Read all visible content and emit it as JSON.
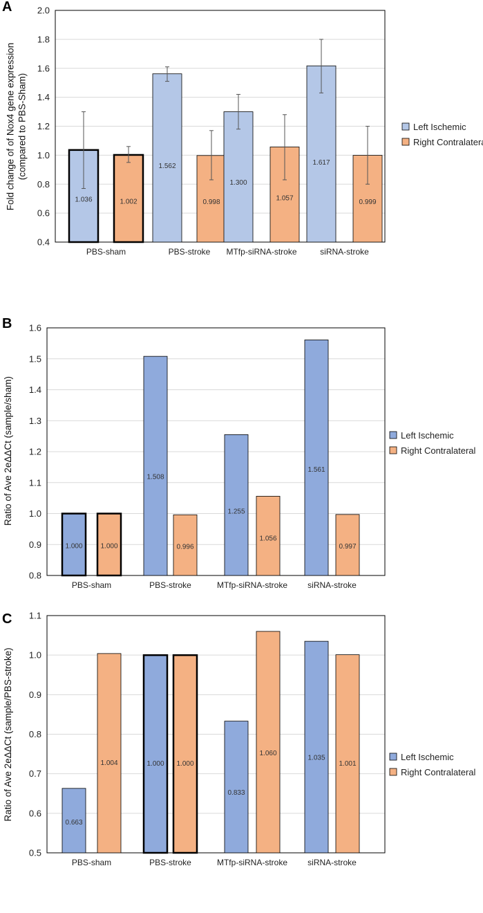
{
  "colors": {
    "left_light": "#b4c7e7",
    "right_light": "#f4b183",
    "left": "#8faadc",
    "right": "#f4b183",
    "grid": "#d9d9d9",
    "frame": "#000000"
  },
  "chart_data": [
    {
      "panel": "A",
      "type": "bar",
      "categories": [
        "PBS-sham",
        "PBS-stroke",
        "MTfp-siRNA-stroke",
        "siRNA-stroke"
      ],
      "series": [
        {
          "name": "Left Ischemic",
          "values": [
            1.036,
            1.562,
            1.3,
            1.617
          ],
          "labels": [
            "1.036",
            "1.562",
            "1.300",
            "1.617"
          ],
          "err_low": [
            0.77,
            1.51,
            1.18,
            1.43
          ],
          "err_high": [
            1.3,
            1.61,
            1.42,
            1.8
          ]
        },
        {
          "name": "Right Contralateral",
          "values": [
            1.002,
            0.998,
            1.057,
            0.999
          ],
          "labels": [
            "1.002",
            "0.998",
            "1.057",
            "0.999"
          ],
          "err_low": [
            0.95,
            0.83,
            0.83,
            0.8
          ],
          "err_high": [
            1.06,
            1.17,
            1.28,
            1.2
          ]
        }
      ],
      "highlight_category": "PBS-sham",
      "ylabel_lines": [
        "Fold change of of Nox4 gene expression",
        "(compared to PBS-Sham)"
      ],
      "ylim": [
        0.4,
        2.0
      ],
      "yticks": [
        "0.4",
        "0.6",
        "0.8",
        "1.0",
        "1.2",
        "1.4",
        "1.6",
        "1.8",
        "2.0"
      ],
      "grid": true,
      "legend_position": "right"
    },
    {
      "panel": "B",
      "type": "bar",
      "categories": [
        "PBS-sham",
        "PBS-stroke",
        "MTfp-siRNA-stroke",
        "siRNA-stroke"
      ],
      "series": [
        {
          "name": "Left Ischemic",
          "values": [
            1.0,
            1.508,
            1.255,
            1.561
          ],
          "labels": [
            "1.000",
            "1.508",
            "1.255",
            "1.561"
          ]
        },
        {
          "name": "Right Contralateral",
          "values": [
            1.0,
            0.996,
            1.056,
            0.997
          ],
          "labels": [
            "1.000",
            "0.996",
            "1.056",
            "0.997"
          ]
        }
      ],
      "highlight_category": "PBS-sham",
      "ylabel_lines": [
        "Ratio of Ave 2eΔΔCt (sample/sham)"
      ],
      "ylim": [
        0.8,
        1.6
      ],
      "yticks": [
        "0.8",
        "0.9",
        "1.0",
        "1.1",
        "1.2",
        "1.3",
        "1.4",
        "1.5",
        "1.6"
      ],
      "grid": true,
      "legend_position": "right"
    },
    {
      "panel": "C",
      "type": "bar",
      "categories": [
        "PBS-sham",
        "PBS-stroke",
        "MTfp-siRNA-stroke",
        "siRNA-stroke"
      ],
      "series": [
        {
          "name": "Left Ischemic",
          "values": [
            0.663,
            1.0,
            0.833,
            1.035
          ],
          "labels": [
            "0.663",
            "1.000",
            "0.833",
            "1.035"
          ]
        },
        {
          "name": "Right Contralateral",
          "values": [
            1.004,
            1.0,
            1.06,
            1.001
          ],
          "labels": [
            "1.004",
            "1.000",
            "1.060",
            "1.001"
          ]
        }
      ],
      "highlight_category": "PBS-stroke",
      "ylabel_lines": [
        "Ratio of Ave 2eΔΔCt (sample/PBS-stroke)"
      ],
      "ylim": [
        0.5,
        1.1
      ],
      "yticks": [
        "0.5",
        "0.6",
        "0.7",
        "0.8",
        "0.9",
        "1.0",
        "1.1"
      ],
      "grid": true,
      "legend_position": "right"
    }
  ]
}
